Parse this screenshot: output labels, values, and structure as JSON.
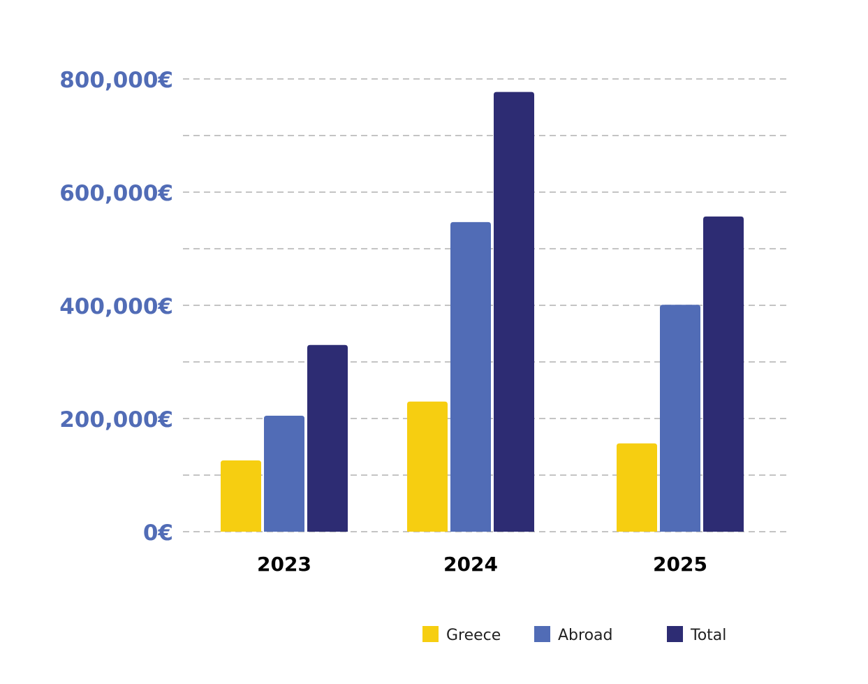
{
  "chart_data": {
    "type": "bar",
    "title": "",
    "xlabel": "",
    "ylabel": "",
    "categories": [
      "2023",
      "2024",
      "2025"
    ],
    "series": [
      {
        "name": "Greece",
        "color": "#F6CE11",
        "values": [
          126000,
          230000,
          156000
        ]
      },
      {
        "name": "Abroad",
        "color": "#516CB6",
        "values": [
          205000,
          547000,
          401000
        ]
      },
      {
        "name": "Total",
        "color": "#2D2C73",
        "values": [
          330000,
          777000,
          557000
        ]
      }
    ],
    "ylim": [
      0,
      800000
    ],
    "yticks": [
      0,
      200000,
      400000,
      600000,
      800000
    ],
    "ytick_labels": [
      "0€",
      "200,000€",
      "400,000€",
      "600,000€",
      "800,000€"
    ],
    "grid": {
      "on": true,
      "style": "dashed",
      "step": 100000
    },
    "legend_position": "bottom-right"
  }
}
